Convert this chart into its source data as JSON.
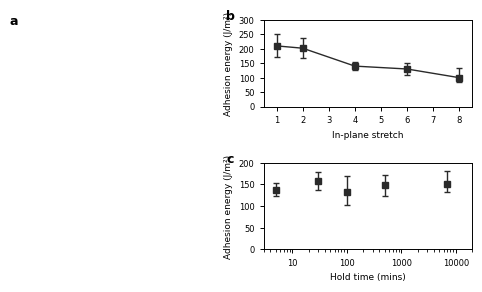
{
  "panel_b": {
    "x": [
      1,
      2,
      4,
      6,
      8
    ],
    "y": [
      210,
      202,
      140,
      130,
      100
    ],
    "yerr_upper": [
      40,
      35,
      15,
      20,
      35
    ],
    "yerr_lower": [
      40,
      35,
      15,
      20,
      15
    ],
    "xlabel": "In-plane stretch",
    "ylabel": "Adhesion energy (J/m²)",
    "xlim": [
      0.5,
      8.5
    ],
    "ylim": [
      0,
      300
    ],
    "yticks": [
      0,
      50,
      100,
      150,
      200,
      250,
      300
    ],
    "xticks": [
      1,
      2,
      3,
      4,
      5,
      6,
      7,
      8
    ],
    "title": "b"
  },
  "panel_c": {
    "x": [
      5,
      30,
      100,
      500,
      7000
    ],
    "y": [
      138,
      158,
      132,
      148,
      152
    ],
    "yerr_upper": [
      15,
      20,
      38,
      25,
      28
    ],
    "yerr_lower": [
      15,
      20,
      30,
      25,
      20
    ],
    "xlabel": "Hold time (mins)",
    "ylabel": "Adhesion energy (J/m²)",
    "xlim": [
      3,
      20000
    ],
    "ylim": [
      0,
      200
    ],
    "yticks": [
      0,
      50,
      100,
      150,
      200
    ],
    "title": "c"
  },
  "marker": "s",
  "markersize": 4,
  "linecolor": "#2a2a2a",
  "linewidth": 1.0,
  "capsize": 2.5,
  "elinewidth": 1.0,
  "label_fontsize": 6.5,
  "tick_fontsize": 6,
  "title_fontsize": 9,
  "bg_color": "#ffffff"
}
